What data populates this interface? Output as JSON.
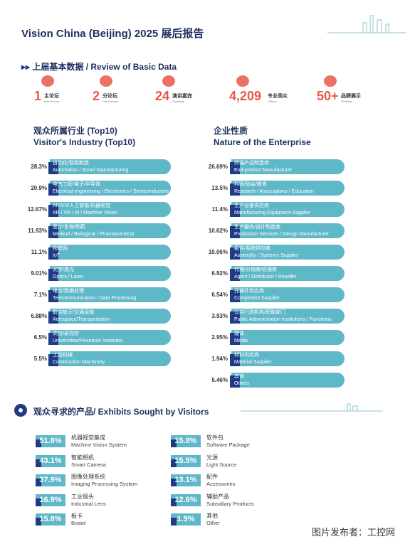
{
  "header": {
    "title": "Vision China (Beijing) 2025 展后报告"
  },
  "review": {
    "title": "上届基本数据 / Review of Basic Data",
    "stats": [
      {
        "number": "1",
        "cn": "主论坛",
        "en": "Main Forum"
      },
      {
        "number": "2",
        "cn": "分论坛",
        "en": "Sub Forums"
      },
      {
        "number": "24",
        "cn": "演讲嘉宾",
        "en": "Speakers"
      },
      {
        "number": "4,209",
        "cn": "专业观众",
        "en": "Visitors"
      },
      {
        "number": "50+",
        "cn": "品牌展示",
        "en": "Exhibitor"
      }
    ]
  },
  "industry": {
    "title_cn": "观众所属行业 (Top10)",
    "title_en": "Visitor's Industry (Top10)",
    "rows": [
      {
        "pct": "28.3%",
        "cn": "自动化/智能制造",
        "en": "Automation / Smart Manufacturing"
      },
      {
        "pct": "20.9%",
        "cn": "电气工程/电子/半导体",
        "en": "Electrical engineering / Electronics / Semiconductors"
      },
      {
        "pct": "12.67%",
        "cn": "AR/VR/人工智能/机器视觉",
        "en": "AR / VR / AI / Machine Vision"
      },
      {
        "pct": "11.93%",
        "cn": "医疗/生物/制药",
        "en": "Medical / Biological / Pharmaceutical"
      },
      {
        "pct": "11.1%",
        "cn": "物联网",
        "en": "IoT"
      },
      {
        "pct": "9.01%",
        "cn": "光学/激光",
        "en": "Optics / Laser"
      },
      {
        "pct": "7.1%",
        "cn": "电信/数据处理",
        "en": "Telecommunication / Data Processing"
      },
      {
        "pct": "6.88%",
        "cn": "航空航天/交通运输",
        "en": "Aerospace/Transportation"
      },
      {
        "pct": "6.5%",
        "cn": "高校/研究所",
        "en": "Universities/Research Institutes"
      },
      {
        "pct": "5.5%",
        "cn": "工程机械",
        "en": "Construction Machinery"
      }
    ]
  },
  "enterprise": {
    "title_cn": "企业性质",
    "title_en": "Nature of the Enterprise",
    "rows": [
      {
        "pct": "26.69%",
        "cn": "终端产品制造商",
        "en": "End-product Manufacturer"
      },
      {
        "pct": "13.5%",
        "cn": "科研/协会/教育",
        "en": "Research / Associations / Education"
      },
      {
        "pct": "11.4%",
        "cn": "生产设备供应商",
        "en": "Manufacturing Equipment Supplier"
      },
      {
        "pct": "10.62%",
        "cn": "生产服务/设计制造商",
        "en": "Production Services / Design Manufacturer"
      },
      {
        "pct": "10.06%",
        "cn": "组件/系统供应商",
        "en": "Assembly / Systems Supplier"
      },
      {
        "pct": "6.92%",
        "cn": "代理/分销商/经销商",
        "en": "Agent / Distributor / Reseller"
      },
      {
        "pct": "6.54%",
        "cn": "元器件供应商",
        "en": "Component Supplier"
      },
      {
        "pct": "3.93%",
        "cn": "公共行政机构/职能部门",
        "en": "Public Administration Institutions / Functions"
      },
      {
        "pct": "2.95%",
        "cn": "媒体",
        "en": "Media"
      },
      {
        "pct": "1.94%",
        "cn": "材料供应商",
        "en": "Material Supplier"
      },
      {
        "pct": "5.46%",
        "cn": "其他",
        "en": "Others"
      }
    ]
  },
  "products": {
    "title": "观众寻求的产品/ Exhibits Sought by Visitors",
    "left": [
      {
        "pct": "51.8%",
        "cn": "机器视觉集成",
        "en": "Machine Vision System"
      },
      {
        "pct": "43.1%",
        "cn": "智能相机",
        "en": "Smart Camera"
      },
      {
        "pct": "37.9%",
        "cn": "图像处理系统",
        "en": "Imaging Processing System"
      },
      {
        "pct": "16.9%",
        "cn": "工业镜头",
        "en": "Industrial Lens"
      },
      {
        "pct": "15.8%",
        "cn": "板卡",
        "en": "Board"
      }
    ],
    "right": [
      {
        "pct": "15.8%",
        "cn": "软件包",
        "en": "Software Package"
      },
      {
        "pct": "15.5%",
        "cn": "光源",
        "en": "Light Source"
      },
      {
        "pct": "13.1%",
        "cn": "配件",
        "en": "Accessories"
      },
      {
        "pct": "12.6%",
        "cn": "辅助产品",
        "en": "Subsidiary Products"
      },
      {
        "pct": "1.9%",
        "cn": "其他",
        "en": "Other"
      }
    ]
  },
  "footer": {
    "credit": "图片发布者：工控网"
  }
}
